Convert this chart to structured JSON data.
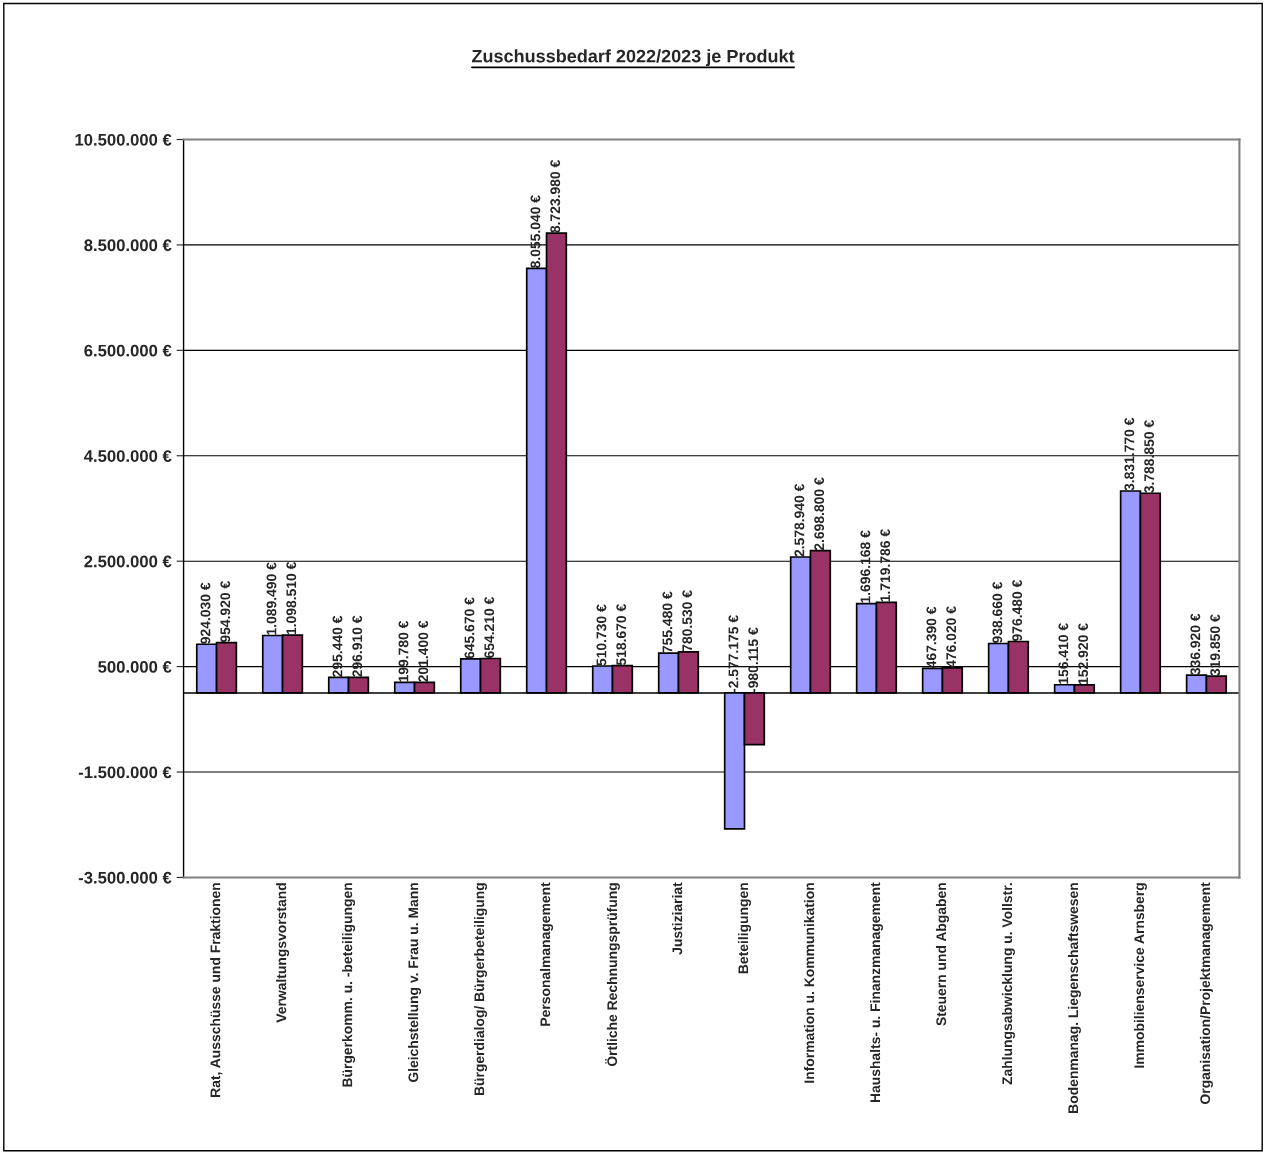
{
  "chart_data": {
    "type": "bar",
    "title": "Zuschussbedarf 2022/2023 je Produkt",
    "categories": [
      "Rat, Ausschüsse und Fraktionen",
      "Verwaltungsvorstand",
      "Bürgerkomm. u. -beteiligungen",
      "Gleichstellung v. Frau u. Mann",
      "Bürgerdialog/ Bürgerbeteiligung",
      "Personalmanagement",
      "Örtliche Rechnungsprüfung",
      "Justiziariat",
      "Beteiligungen",
      "Information u. Kommunikation",
      "Haushalts- u. Finanzmanagement",
      "Steuern und Abgaben",
      "Zahlungsabwicklung u. Vollstr.",
      "Bodenmanag. Liegenschaftswesen",
      "Immobilienservice Arnsberg",
      "Organisation/Projektmanagement"
    ],
    "series": [
      {
        "color": "#9999ff",
        "values": [
          924030,
          1089490,
          295440,
          199780,
          645670,
          8055040,
          510730,
          755480,
          -2577175,
          2578940,
          1696168,
          467390,
          938660,
          156410,
          3831770,
          336920
        ],
        "value_labels": [
          "924.030 €",
          "1.089.490 €",
          "295.440 €",
          "199.780 €",
          "645.670 €",
          "8.055.040 €",
          "510.730 €",
          "755.480 €",
          "-2.577.175 €",
          "2.578.940 €",
          "1.696.168 €",
          "467.390 €",
          "938.660 €",
          "156.410 €",
          "3.831.770 €",
          "336.920 €"
        ]
      },
      {
        "color": "#993366",
        "values": [
          954920,
          1098510,
          296910,
          201400,
          654210,
          8723980,
          518670,
          780530,
          -980115,
          2698800,
          1719786,
          476020,
          976480,
          152920,
          3788850,
          319850
        ],
        "value_labels": [
          "954.920 €",
          "1.098.510 €",
          "296.910 €",
          "201.400 €",
          "654.210 €",
          "8.723.980 €",
          "518.670 €",
          "780.530 €",
          "-980.115 €",
          "2.698.800 €",
          "1.719.786 €",
          "476.020 €",
          "976.480 €",
          "152.920 €",
          "3.788.850 €",
          "319.850 €"
        ]
      }
    ],
    "ylim": [
      -3500000,
      10500000
    ],
    "yticks": [
      {
        "value": -3500000,
        "label": "-3.500.000 €"
      },
      {
        "value": -1500000,
        "label": "-1.500.000 €"
      },
      {
        "value": 500000,
        "label": "500.000 €"
      },
      {
        "value": 2500000,
        "label": "2.500.000 €"
      },
      {
        "value": 4500000,
        "label": "4.500.000 €"
      },
      {
        "value": 6500000,
        "label": "6.500.000 €"
      },
      {
        "value": 8500000,
        "label": "8.500.000 €"
      },
      {
        "value": 10500000,
        "label": "10.500.000 €"
      }
    ],
    "grid": "y"
  }
}
